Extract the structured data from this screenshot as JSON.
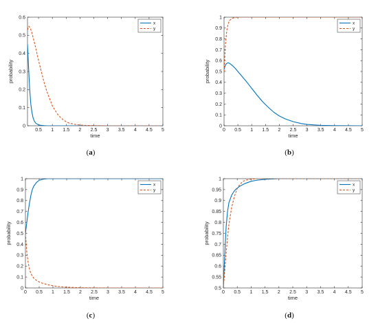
{
  "colors": {
    "x": "#0072BD",
    "y": "#D95319",
    "axis": "#262626"
  },
  "chart_data": [
    {
      "type": "line",
      "caption": "(a)",
      "caption_label": "a",
      "xlabel": "time",
      "ylabel": "probability",
      "xlim": [
        0.1,
        5
      ],
      "ylim": [
        0,
        0.6
      ],
      "xticks": [
        0.5,
        1,
        1.5,
        2,
        2.5,
        3,
        3.5,
        4,
        4.5,
        5
      ],
      "yticks": [
        0,
        0.1,
        0.2,
        0.3,
        0.4,
        0.5,
        0.6
      ],
      "xtick_labels": [
        "0.5",
        "1",
        "1.5",
        "2",
        "2.5",
        "3",
        "3.5",
        "4",
        "4.5",
        "5"
      ],
      "ytick_labels": [
        "0",
        "0.1",
        "0.2",
        "0.3",
        "0.4",
        "0.5",
        "0.6"
      ],
      "legend_position": "top-right",
      "series": [
        {
          "name": "x",
          "style": "solid",
          "x": [
            0.1,
            0.14,
            0.18,
            0.22,
            0.26,
            0.3,
            0.35,
            0.4,
            0.5,
            0.6,
            0.7,
            0.8,
            1.0,
            1.5,
            2,
            3,
            4,
            5
          ],
          "y": [
            0.45,
            0.32,
            0.2,
            0.12,
            0.075,
            0.045,
            0.025,
            0.014,
            0.005,
            0.002,
            0.001,
            0,
            0,
            0,
            0,
            0,
            0,
            0
          ]
        },
        {
          "name": "y",
          "style": "dashed",
          "x": [
            0.1,
            0.15,
            0.2,
            0.25,
            0.3,
            0.4,
            0.5,
            0.6,
            0.7,
            0.8,
            0.9,
            1.0,
            1.1,
            1.2,
            1.3,
            1.4,
            1.5,
            1.6,
            1.8,
            2.0,
            2.2,
            2.5,
            3,
            4,
            5
          ],
          "y": [
            0.53,
            0.55,
            0.54,
            0.52,
            0.49,
            0.43,
            0.36,
            0.3,
            0.24,
            0.19,
            0.15,
            0.11,
            0.085,
            0.062,
            0.045,
            0.032,
            0.022,
            0.015,
            0.008,
            0.004,
            0.002,
            0.001,
            0,
            0,
            0
          ]
        }
      ]
    },
    {
      "type": "line",
      "caption": "(b)",
      "caption_label": "b",
      "xlabel": "time",
      "ylabel": "probability",
      "xlim": [
        0,
        5
      ],
      "ylim": [
        0,
        1
      ],
      "xticks": [
        0,
        0.5,
        1,
        1.5,
        2,
        2.5,
        3,
        3.5,
        4,
        4.5,
        5
      ],
      "yticks": [
        0,
        0.1,
        0.2,
        0.3,
        0.4,
        0.5,
        0.6,
        0.7,
        0.8,
        0.9,
        1
      ],
      "xtick_labels": [
        "0",
        "0.5",
        "1",
        "1.5",
        "2",
        "2.5",
        "3",
        "3.5",
        "4",
        "4.5",
        "5"
      ],
      "ytick_labels": [
        "0",
        "0.1",
        "0.2",
        "0.3",
        "0.4",
        "0.5",
        "0.6",
        "0.7",
        "0.8",
        "0.9",
        "1"
      ],
      "legend_position": "top-right",
      "series": [
        {
          "name": "x",
          "style": "solid",
          "x": [
            0,
            0.05,
            0.1,
            0.15,
            0.2,
            0.3,
            0.4,
            0.5,
            0.6,
            0.8,
            1.0,
            1.2,
            1.4,
            1.6,
            1.8,
            2.0,
            2.2,
            2.5,
            2.8,
            3.0,
            3.5,
            4,
            5
          ],
          "y": [
            0.52,
            0.56,
            0.575,
            0.58,
            0.575,
            0.555,
            0.53,
            0.5,
            0.47,
            0.41,
            0.345,
            0.28,
            0.22,
            0.17,
            0.125,
            0.09,
            0.065,
            0.038,
            0.02,
            0.012,
            0.004,
            0.001,
            0
          ]
        },
        {
          "name": "y",
          "style": "dashed",
          "x": [
            0,
            0.05,
            0.1,
            0.15,
            0.2,
            0.3,
            0.4,
            0.5,
            0.7,
            1.0,
            2,
            3,
            4,
            5
          ],
          "y": [
            0.5,
            0.75,
            0.88,
            0.94,
            0.97,
            0.99,
            0.997,
            1,
            1,
            1,
            1,
            1,
            1,
            1
          ]
        }
      ]
    },
    {
      "type": "line",
      "caption": "(c)",
      "caption_label": "c",
      "xlabel": "time",
      "ylabel": "probability",
      "xlim": [
        0,
        5
      ],
      "ylim": [
        0,
        1
      ],
      "xticks": [
        0,
        0.5,
        1,
        1.5,
        2,
        2.5,
        3,
        3.5,
        4,
        4.5,
        5
      ],
      "yticks": [
        0,
        0.1,
        0.2,
        0.3,
        0.4,
        0.5,
        0.6,
        0.7,
        0.8,
        0.9,
        1
      ],
      "xtick_labels": [
        "0",
        "0.5",
        "1",
        "1.5",
        "2",
        "2.5",
        "3",
        "3.5",
        "4",
        "4.5",
        "5"
      ],
      "ytick_labels": [
        "0",
        "0.1",
        "0.2",
        "0.3",
        "0.4",
        "0.5",
        "0.6",
        "0.7",
        "0.8",
        "0.9",
        "1"
      ],
      "legend_position": "top-right",
      "series": [
        {
          "name": "x",
          "style": "solid",
          "x": [
            0,
            0.05,
            0.1,
            0.15,
            0.2,
            0.25,
            0.3,
            0.4,
            0.5,
            0.6,
            0.7,
            0.8,
            1.0,
            1.5,
            2,
            3,
            4,
            5
          ],
          "y": [
            0.5,
            0.6,
            0.7,
            0.78,
            0.85,
            0.9,
            0.93,
            0.965,
            0.985,
            0.993,
            0.997,
            1,
            1,
            1,
            1,
            1,
            1,
            1
          ]
        },
        {
          "name": "y",
          "style": "dashed",
          "x": [
            0,
            0.05,
            0.1,
            0.15,
            0.2,
            0.3,
            0.4,
            0.5,
            0.6,
            0.8,
            1.0,
            1.2,
            1.5,
            1.8,
            2.0,
            2.5,
            3,
            4,
            5
          ],
          "y": [
            0.5,
            0.33,
            0.23,
            0.17,
            0.13,
            0.09,
            0.07,
            0.055,
            0.045,
            0.03,
            0.02,
            0.013,
            0.007,
            0.004,
            0.002,
            0.001,
            0,
            0,
            0
          ]
        }
      ]
    },
    {
      "type": "line",
      "caption": "(d)",
      "caption_label": "d",
      "xlabel": "time",
      "ylabel": "probability",
      "xlim": [
        0,
        5
      ],
      "ylim": [
        0.5,
        1
      ],
      "xticks": [
        0,
        0.5,
        1,
        1.5,
        2,
        2.5,
        3,
        3.5,
        4,
        4.5,
        5
      ],
      "yticks": [
        0.5,
        0.55,
        0.6,
        0.65,
        0.7,
        0.75,
        0.8,
        0.85,
        0.9,
        0.95,
        1
      ],
      "xtick_labels": [
        "0",
        "0.5",
        "1",
        "1.5",
        "2",
        "2.5",
        "3",
        "3.5",
        "4",
        "4.5",
        "5"
      ],
      "ytick_labels": [
        "0.5",
        "0.55",
        "0.6",
        "0.65",
        "0.7",
        "0.75",
        "0.8",
        "0.85",
        "0.9",
        "0.95",
        "1"
      ],
      "legend_position": "top-right",
      "series": [
        {
          "name": "x",
          "style": "solid",
          "x": [
            0,
            0.05,
            0.1,
            0.15,
            0.2,
            0.3,
            0.4,
            0.5,
            0.6,
            0.7,
            0.8,
            1.0,
            1.2,
            1.5,
            2,
            2.5,
            3,
            4,
            5
          ],
          "y": [
            0.5,
            0.65,
            0.78,
            0.85,
            0.89,
            0.925,
            0.945,
            0.957,
            0.966,
            0.973,
            0.979,
            0.988,
            0.993,
            0.997,
            1,
            1,
            1,
            1,
            1
          ]
        },
        {
          "name": "y",
          "style": "dashed",
          "x": [
            0,
            0.05,
            0.1,
            0.15,
            0.2,
            0.3,
            0.4,
            0.5,
            0.6,
            0.7,
            0.8,
            1.0,
            1.2,
            1.5,
            2,
            3,
            4,
            5
          ],
          "y": [
            0.5,
            0.58,
            0.66,
            0.73,
            0.79,
            0.87,
            0.92,
            0.955,
            0.975,
            0.987,
            0.993,
            0.998,
            1,
            1,
            1,
            1,
            1,
            1
          ]
        }
      ]
    }
  ]
}
